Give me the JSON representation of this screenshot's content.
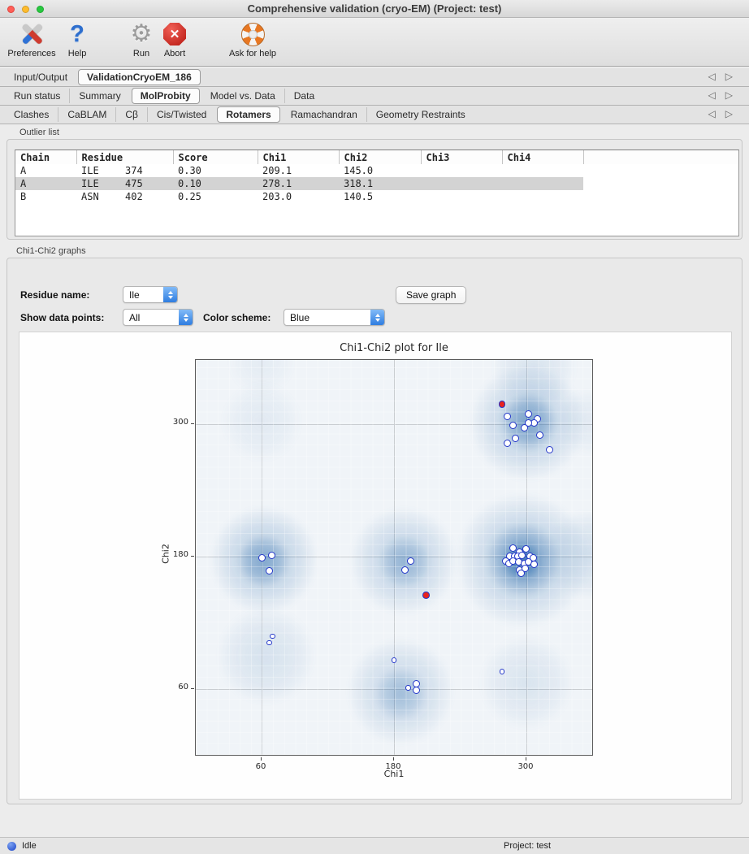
{
  "window": {
    "title": "Comprehensive validation (cryo-EM) (Project: test)"
  },
  "toolbar": {
    "items": [
      {
        "label": "Preferences",
        "icon": "tools-icon"
      },
      {
        "label": "Help",
        "icon": "help-icon"
      },
      {
        "label": "Run",
        "icon": "gear-icon"
      },
      {
        "label": "Abort",
        "icon": "abort-icon"
      },
      {
        "label": "Ask for help",
        "icon": "lifebuoy-icon"
      }
    ]
  },
  "tab_rows": [
    {
      "name": "main-tabs",
      "tabs": [
        {
          "label": "Input/Output",
          "active": false
        },
        {
          "label": "ValidationCryoEM_186",
          "active": true
        }
      ]
    },
    {
      "name": "validation-tabs",
      "tabs": [
        {
          "label": "Run status",
          "active": false
        },
        {
          "label": "Summary",
          "active": false
        },
        {
          "label": "MolProbity",
          "active": true
        },
        {
          "label": "Model vs. Data",
          "active": false
        },
        {
          "label": "Data",
          "active": false
        }
      ]
    },
    {
      "name": "molprobity-tabs",
      "tabs": [
        {
          "label": "Clashes",
          "active": false
        },
        {
          "label": "CaBLAM",
          "active": false
        },
        {
          "label": "Cβ",
          "active": false
        },
        {
          "label": "Cis/Twisted",
          "active": false
        },
        {
          "label": "Rotamers",
          "active": true
        },
        {
          "label": "Ramachandran",
          "active": false
        },
        {
          "label": "Geometry Restraints",
          "active": false
        }
      ]
    }
  ],
  "outlier_list": {
    "group_label": "Outlier list",
    "columns": [
      "Chain",
      "Residue",
      "Score",
      "Chi1",
      "Chi2",
      "Chi3",
      "Chi4"
    ],
    "rows": [
      {
        "chain": "A",
        "res_name": "ILE",
        "res_num": "374",
        "score": "0.30",
        "chi1": "209.1",
        "chi2": "145.0",
        "chi3": "",
        "chi4": "",
        "selected": false
      },
      {
        "chain": "A",
        "res_name": "ILE",
        "res_num": "475",
        "score": "0.10",
        "chi1": "278.1",
        "chi2": "318.1",
        "chi3": "",
        "chi4": "",
        "selected": true
      },
      {
        "chain": "B",
        "res_name": "ASN",
        "res_num": "402",
        "score": "0.25",
        "chi1": "203.0",
        "chi2": "140.5",
        "chi3": "",
        "chi4": "",
        "selected": false
      }
    ]
  },
  "graph_panel": {
    "group_label": "Chi1-Chi2 graphs",
    "residue_name_label": "Residue name:",
    "residue_name_value": "Ile",
    "save_button": "Save graph",
    "show_points_label": "Show data points:",
    "show_points_value": "All",
    "color_scheme_label": "Color scheme:",
    "color_scheme_value": "Blue"
  },
  "chart_data": {
    "type": "scatter",
    "title": "Chi1-Chi2 plot for Ile",
    "xlabel": "Chi1",
    "ylabel": "Chi2",
    "xlim": [
      0,
      360
    ],
    "ylim": [
      0,
      360
    ],
    "xticks": [
      60,
      180,
      300
    ],
    "yticks": [
      60,
      180,
      300
    ],
    "grid": true,
    "background_color": "#f0f4f8",
    "density_color": "#3472b0",
    "series": [
      {
        "name": "data-points",
        "marker": "open-circle",
        "color": "#2336c9",
        "points": [
          [
            283,
            307
          ],
          [
            302,
            309
          ],
          [
            310,
            305
          ],
          [
            307,
            301
          ],
          [
            302,
            301
          ],
          [
            298,
            297
          ],
          [
            288,
            299
          ],
          [
            312,
            290
          ],
          [
            290,
            287
          ],
          [
            283,
            283
          ],
          [
            321,
            277
          ],
          [
            60,
            179
          ],
          [
            69,
            181
          ],
          [
            67,
            167
          ],
          [
            195,
            176
          ],
          [
            190,
            168
          ],
          [
            288,
            188
          ],
          [
            294,
            184
          ],
          [
            300,
            187
          ],
          [
            285,
            180
          ],
          [
            289,
            180
          ],
          [
            292,
            180
          ],
          [
            296,
            181
          ],
          [
            303,
            180
          ],
          [
            306,
            179
          ],
          [
            281,
            176
          ],
          [
            284,
            174
          ],
          [
            288,
            176
          ],
          [
            293,
            175
          ],
          [
            298,
            174
          ],
          [
            302,
            175
          ],
          [
            307,
            173
          ],
          [
            294,
            168
          ],
          [
            299,
            169
          ],
          [
            295,
            165
          ],
          [
            200,
            65
          ],
          [
            200,
            59
          ]
        ]
      },
      {
        "name": "data-points-small",
        "marker": "open-circle-small",
        "color": "#2336c9",
        "points": [
          [
            70,
            108
          ],
          [
            67,
            102
          ],
          [
            180,
            86
          ],
          [
            193,
            61
          ],
          [
            278,
            76
          ]
        ]
      },
      {
        "name": "outliers",
        "marker": "filled-circle",
        "color": "#e8231f",
        "points": [
          [
            278.1,
            318.1
          ],
          [
            209.1,
            145.0
          ]
        ]
      }
    ],
    "density_blobs": [
      {
        "x": 297,
        "y": 177,
        "r": 60,
        "a": 0.3
      },
      {
        "x": 297,
        "y": 177,
        "r": 34,
        "a": 0.55
      },
      {
        "x": 296,
        "y": 176,
        "r": 18,
        "a": 0.75
      },
      {
        "x": 301,
        "y": 301,
        "r": 52,
        "a": 0.28
      },
      {
        "x": 302,
        "y": 302,
        "r": 26,
        "a": 0.5
      },
      {
        "x": 62,
        "y": 177,
        "r": 48,
        "a": 0.3
      },
      {
        "x": 62,
        "y": 176,
        "r": 24,
        "a": 0.42
      },
      {
        "x": 189,
        "y": 176,
        "r": 48,
        "a": 0.26
      },
      {
        "x": 190,
        "y": 175,
        "r": 24,
        "a": 0.32
      },
      {
        "x": 64,
        "y": 90,
        "r": 44,
        "a": 0.14
      },
      {
        "x": 186,
        "y": 58,
        "r": 48,
        "a": 0.22
      },
      {
        "x": 186,
        "y": 55,
        "r": 24,
        "a": 0.26
      },
      {
        "x": 300,
        "y": 66,
        "r": 42,
        "a": 0.12
      },
      {
        "x": 357,
        "y": 182,
        "r": 40,
        "a": 0.16
      },
      {
        "x": 60,
        "y": 302,
        "r": 36,
        "a": 0.08
      },
      {
        "x": 307,
        "y": 352,
        "r": 38,
        "a": 0.12
      },
      {
        "x": 357,
        "y": 302,
        "r": 30,
        "a": 0.08
      },
      {
        "x": 60,
        "y": 356,
        "r": 30,
        "a": 0.06
      }
    ]
  },
  "status_bar": {
    "status": "Idle",
    "project": "Project: test"
  }
}
